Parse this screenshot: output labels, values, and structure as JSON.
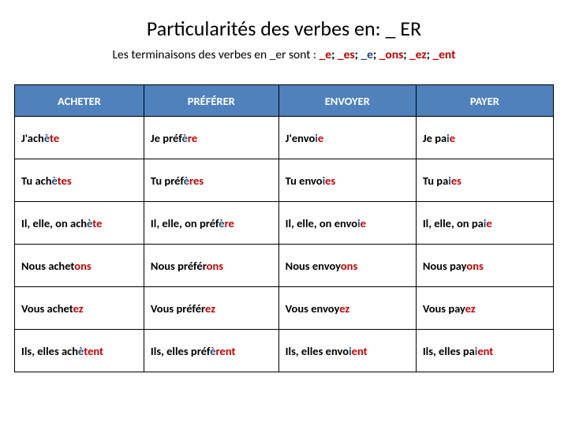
{
  "title_parts": {
    "t1": "Particularités des verbes en:   _ ER"
  },
  "subtitle": {
    "lead": "Les terminaisons des verbes en _er  sont : ",
    "e1": "_e",
    "s1": "; ",
    "e2": "_es",
    "s2": "; ",
    "e3": "_e",
    "s3": "; ",
    "e4": "_ons",
    "s4": "; ",
    "e5": "_ez",
    "s5": "; ",
    "e6": "_ent"
  },
  "headers": {
    "h1": "ACHETER",
    "h2": "PRÉFÉRER",
    "h3": "ENVOYER",
    "h4": "PAYER"
  },
  "colors": {
    "header_bg": "#4f81bd",
    "header_fg": "#ffffff",
    "red": "#c00000",
    "blue": "#1f497d",
    "border": "#000000"
  },
  "rows": [
    {
      "c1": {
        "stem": "J'ach",
        "mid": "è",
        "end": "te"
      },
      "c2": {
        "stem": "Je préf",
        "mid": "è",
        "end": "re"
      },
      "c3": {
        "stem": "J'envo",
        "mid": "i",
        "end": "e"
      },
      "c4": {
        "stem": "Je pa",
        "mid": "i",
        "end": "e"
      }
    },
    {
      "c1": {
        "stem": "Tu ach",
        "mid": "è",
        "end": "tes"
      },
      "c2": {
        "stem": "Tu préf",
        "mid": "è",
        "end": "res"
      },
      "c3": {
        "stem": "Tu envo",
        "mid": "i",
        "end": "es"
      },
      "c4": {
        "stem": "Tu pa",
        "mid": "i",
        "end": "es"
      }
    },
    {
      "c1": {
        "stem": "Il, elle, on ach",
        "mid": "è",
        "end": "te"
      },
      "c2": {
        "stem": "Il, elle, on préf",
        "mid": "è",
        "end": "re"
      },
      "c3": {
        "stem": "Il, elle, on envo",
        "mid": "i",
        "end": "e"
      },
      "c4": {
        "stem": "Il, elle, on pa",
        "mid": "i",
        "end": "e"
      }
    },
    {
      "c1": {
        "stem": "Nous achet",
        "mid": "",
        "end": "ons"
      },
      "c2": {
        "stem": "Nous préfér",
        "mid": "",
        "end": "ons"
      },
      "c3": {
        "stem": "Nous envoy",
        "mid": "",
        "end": "ons"
      },
      "c4": {
        "stem": "Nous pay",
        "mid": "",
        "end": "ons"
      }
    },
    {
      "c1": {
        "stem": "Vous achet",
        "mid": "",
        "end": "ez"
      },
      "c2": {
        "stem": "Vous préfér",
        "mid": "",
        "end": "ez"
      },
      "c3": {
        "stem": "Vous envoy",
        "mid": "",
        "end": "ez"
      },
      "c4": {
        "stem": "Vous pay",
        "mid": "",
        "end": "ez"
      }
    },
    {
      "c1": {
        "stem": "Ils, elles ach",
        "mid": "è",
        "end": "tent"
      },
      "c2": {
        "stem": "Ils, elles préf",
        "mid": "è",
        "end": "rent"
      },
      "c3": {
        "stem": "Ils, elles envo",
        "mid": "i",
        "end": "ent"
      },
      "c4": {
        "stem": "Ils, elles pa",
        "mid": "i",
        "end": "ent"
      }
    }
  ]
}
